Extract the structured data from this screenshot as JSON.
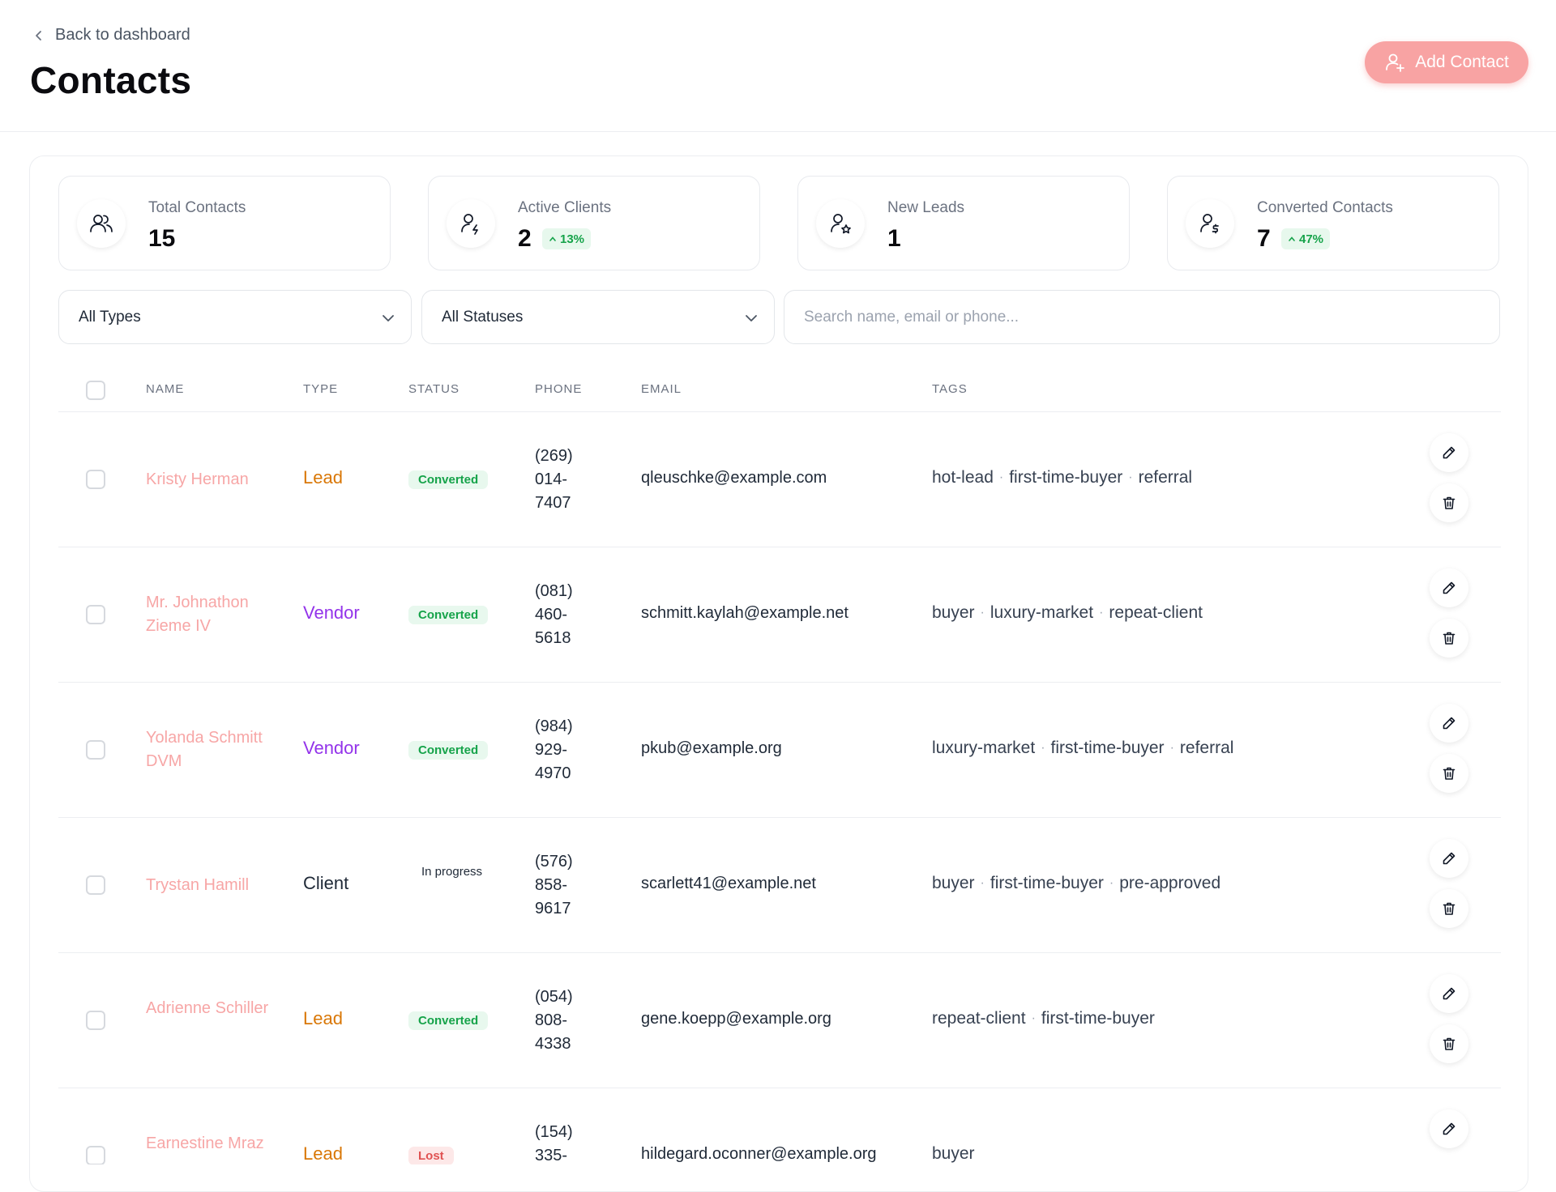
{
  "header": {
    "back_label": "Back to dashboard",
    "title": "Contacts",
    "add_button_label": "Add Contact"
  },
  "stats": [
    {
      "label": "Total Contacts",
      "value": "15",
      "icon": "users-icon"
    },
    {
      "label": "Active Clients",
      "value": "2",
      "delta": "13%",
      "icon": "user-bolt-icon"
    },
    {
      "label": "New Leads",
      "value": "1",
      "icon": "user-star-icon"
    },
    {
      "label": "Converted Contacts",
      "value": "7",
      "delta": "47%",
      "icon": "user-dollar-icon"
    }
  ],
  "filters": {
    "type_select": "All Types",
    "status_select": "All Statuses",
    "search_placeholder": "Search name, email or phone..."
  },
  "table": {
    "columns": [
      "NAME",
      "TYPE",
      "STATUS",
      "PHONE",
      "EMAIL",
      "TAGS"
    ],
    "rows": [
      {
        "name": "Kristy Herman",
        "type": "Lead",
        "status": "Converted",
        "phone": "(269) 014-7407",
        "email": "qleuschke@example.com",
        "tags": [
          "hot-lead",
          "first-time-buyer",
          "referral"
        ]
      },
      {
        "name": "Mr. Johnathon Zieme IV",
        "type": "Vendor",
        "status": "Converted",
        "phone": "(081) 460-5618",
        "email": "schmitt.kaylah@example.net",
        "tags": [
          "buyer",
          "luxury-market",
          "repeat-client"
        ]
      },
      {
        "name": "Yolanda Schmitt DVM",
        "type": "Vendor",
        "status": "Converted",
        "phone": "(984) 929-4970",
        "email": "pkub@example.org",
        "tags": [
          "luxury-market",
          "first-time-buyer",
          "referral"
        ]
      },
      {
        "name": "Trystan Hamill",
        "type": "Client",
        "status": "In progress",
        "phone": "(576) 858-9617",
        "email": "scarlett41@example.net",
        "tags": [
          "buyer",
          "first-time-buyer",
          "pre-approved"
        ]
      },
      {
        "name": "Adrienne Schiller",
        "type": "Lead",
        "status": "Converted",
        "phone": "(054) 808-4338",
        "email": "gene.koepp@example.org",
        "tags": [
          "repeat-client",
          "first-time-buyer"
        ]
      },
      {
        "name": "Earnestine Mraz",
        "type": "Lead",
        "status": "Lost",
        "phone": "(154) 335-",
        "email": "hildegard.oconner@example.org",
        "tags": [
          "buyer"
        ]
      }
    ]
  },
  "colors": {
    "accent": "#f8a3a3",
    "name_link": "#f7a6a6",
    "type_lead": "#d97706",
    "type_vendor": "#9333ea",
    "type_client": "#1f2937",
    "success": "#16a34a"
  }
}
